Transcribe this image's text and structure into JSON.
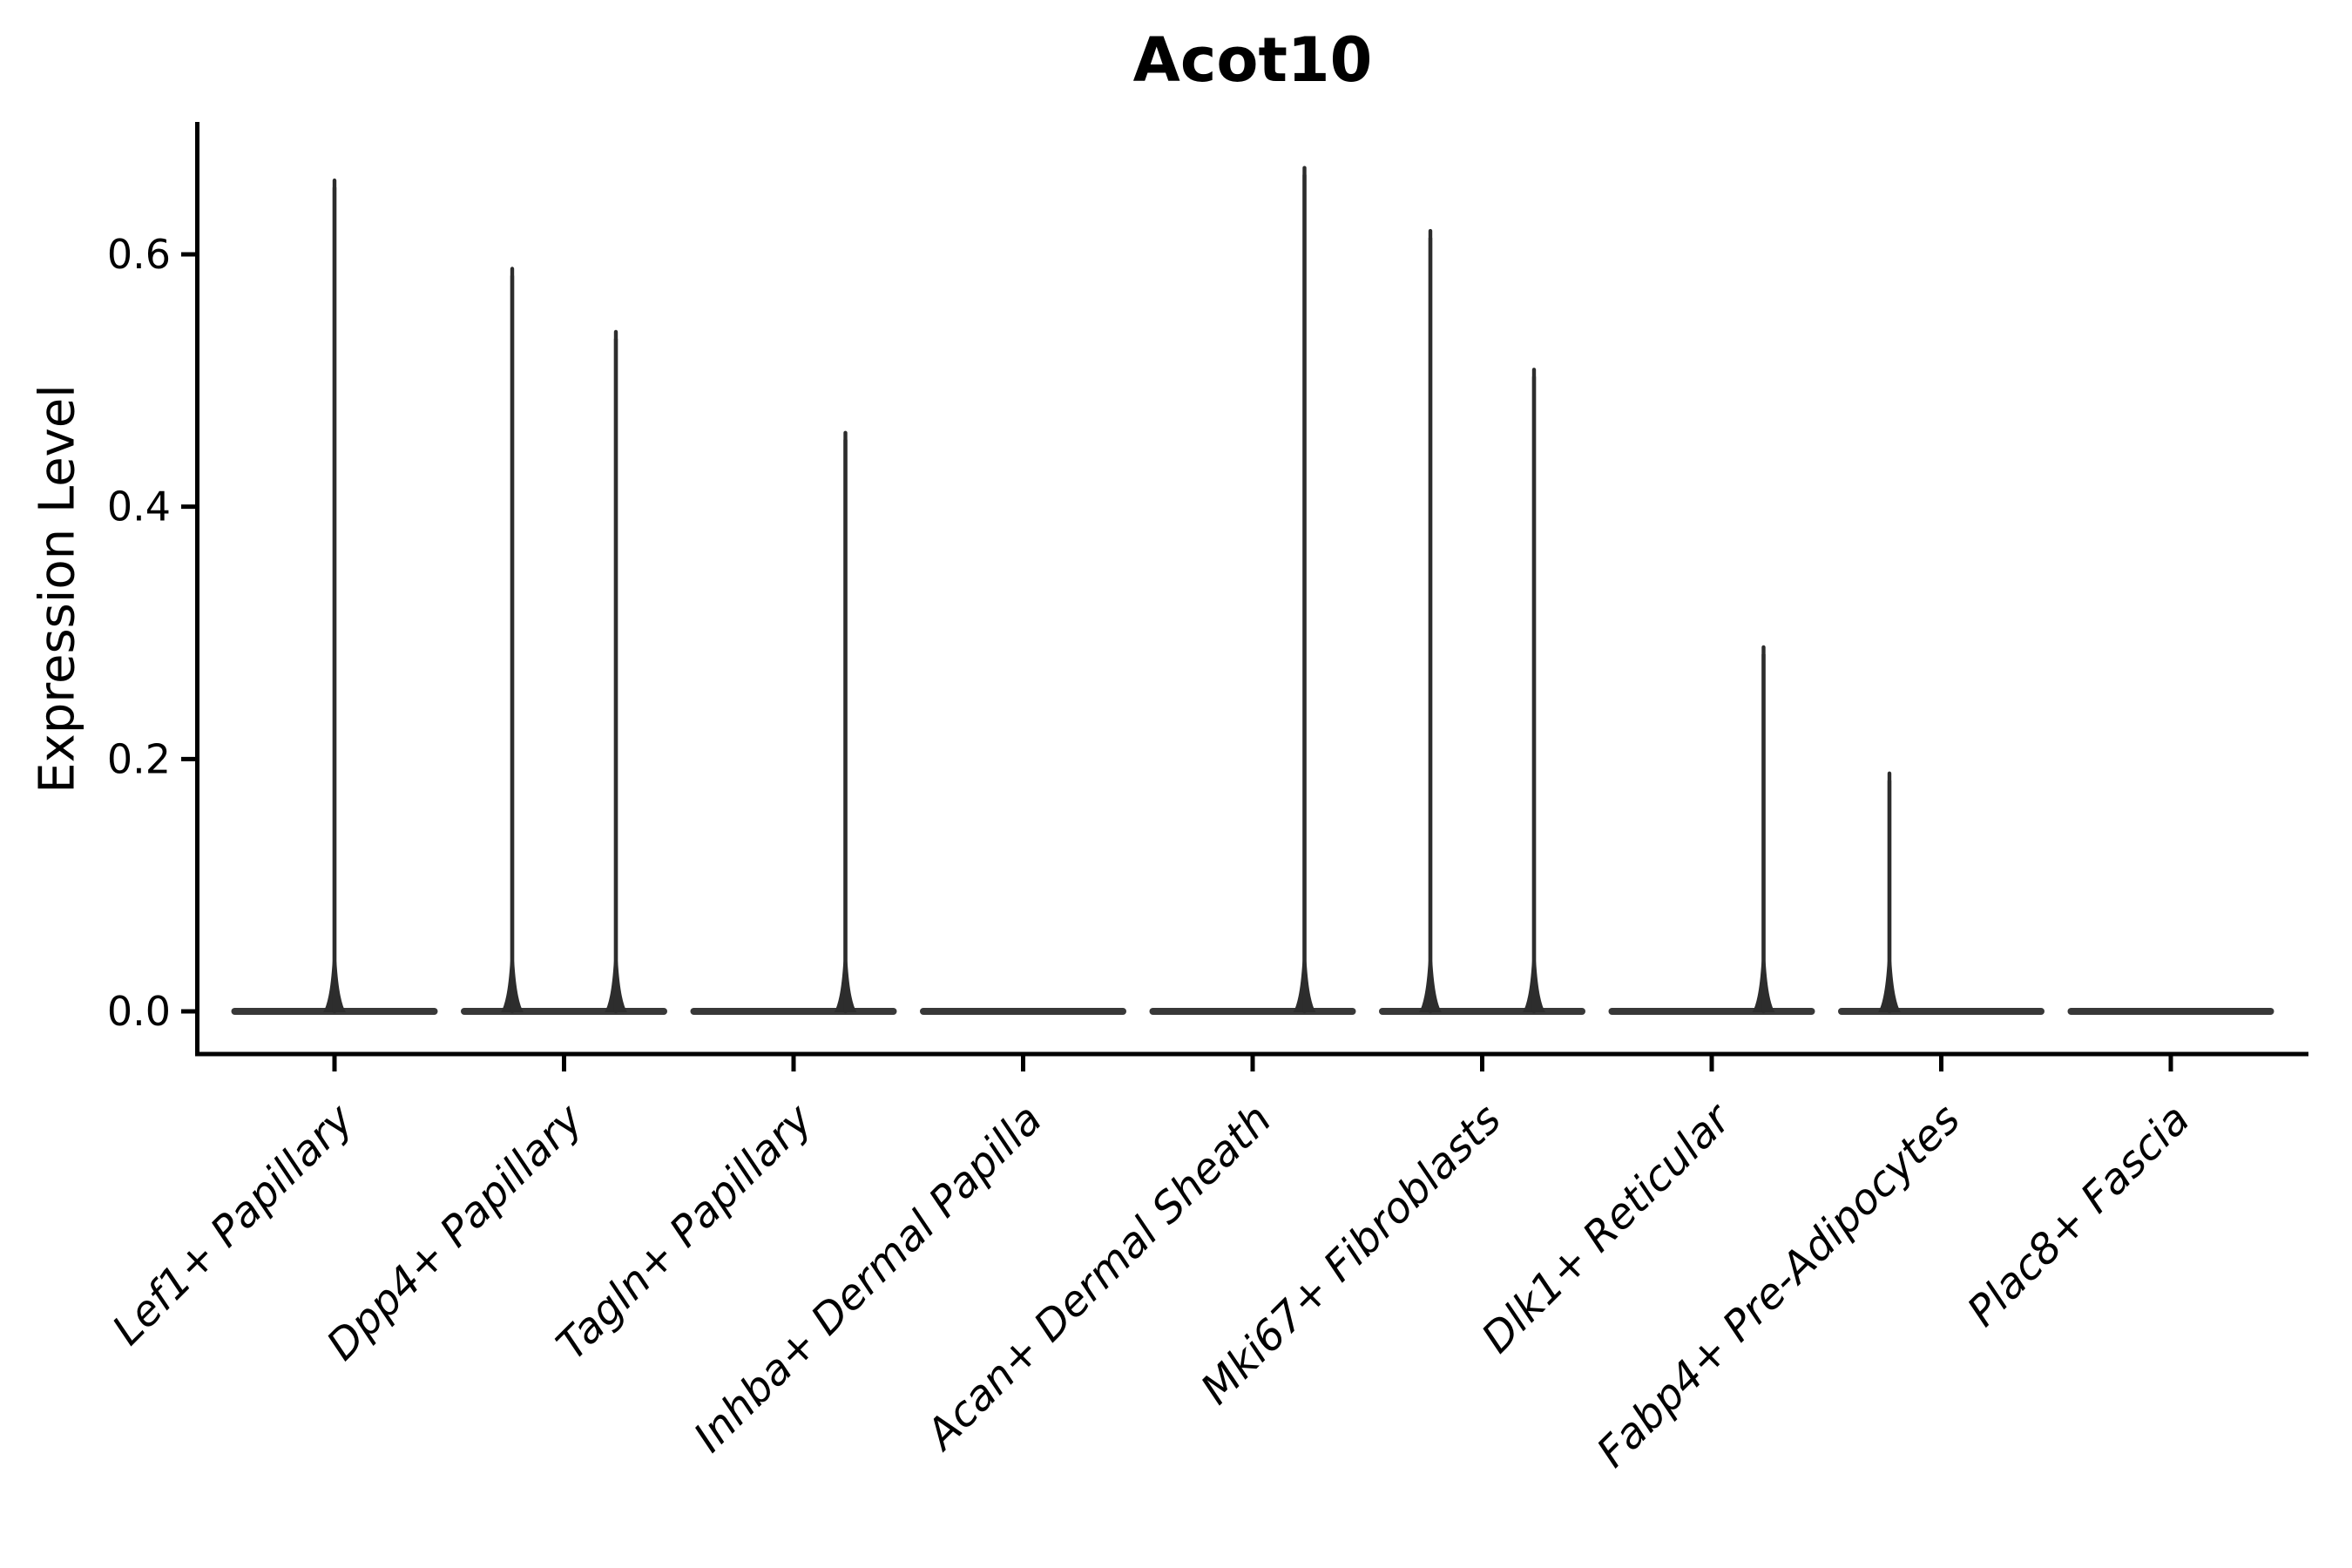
{
  "chart_data": {
    "type": "violin",
    "title": "Acot10",
    "ylabel": "Expression Level",
    "xlabel": "",
    "grid": false,
    "legend": null,
    "background_color": "#ffffff",
    "axis_color": "#000000",
    "text_color": "#000000",
    "violin_color": "#383838",
    "spike_color": "#2d2d2d",
    "ylim": [
      -0.034,
      0.705
    ],
    "yticks": [
      {
        "value": 0.0,
        "label": "0.0"
      },
      {
        "value": 0.2,
        "label": "0.2"
      },
      {
        "value": 0.4,
        "label": "0.4"
      },
      {
        "value": 0.6,
        "label": "0.6"
      }
    ],
    "baseline_value": 0.0,
    "categories": [
      {
        "label": "Lef1+ Papillary",
        "spikes": [
          {
            "position": "center",
            "max_expression": 0.66
          }
        ]
      },
      {
        "label": "Dpp4+ Papillary",
        "spikes": [
          {
            "position": "left",
            "max_expression": 0.59
          },
          {
            "position": "right",
            "max_expression": 0.54
          }
        ]
      },
      {
        "label": "Tagln+ Papillary",
        "spikes": [
          {
            "position": "right",
            "max_expression": 0.46
          }
        ]
      },
      {
        "label": "Inhba+ Dermal Papilla",
        "spikes": []
      },
      {
        "label": "Acan+ Dermal Sheath",
        "spikes": [
          {
            "position": "right",
            "max_expression": 0.67
          }
        ]
      },
      {
        "label": "Mki67+ Fibroblasts",
        "spikes": [
          {
            "position": "left",
            "max_expression": 0.62
          },
          {
            "position": "right",
            "max_expression": 0.51
          }
        ]
      },
      {
        "label": "Dlk1+ Reticular",
        "spikes": [
          {
            "position": "right",
            "max_expression": 0.29
          }
        ]
      },
      {
        "label": "Fabp4+ Pre-Adipocytes",
        "spikes": [
          {
            "position": "left",
            "max_expression": 0.19
          }
        ]
      },
      {
        "label": "Plac8+ Fascia",
        "spikes": []
      }
    ]
  }
}
